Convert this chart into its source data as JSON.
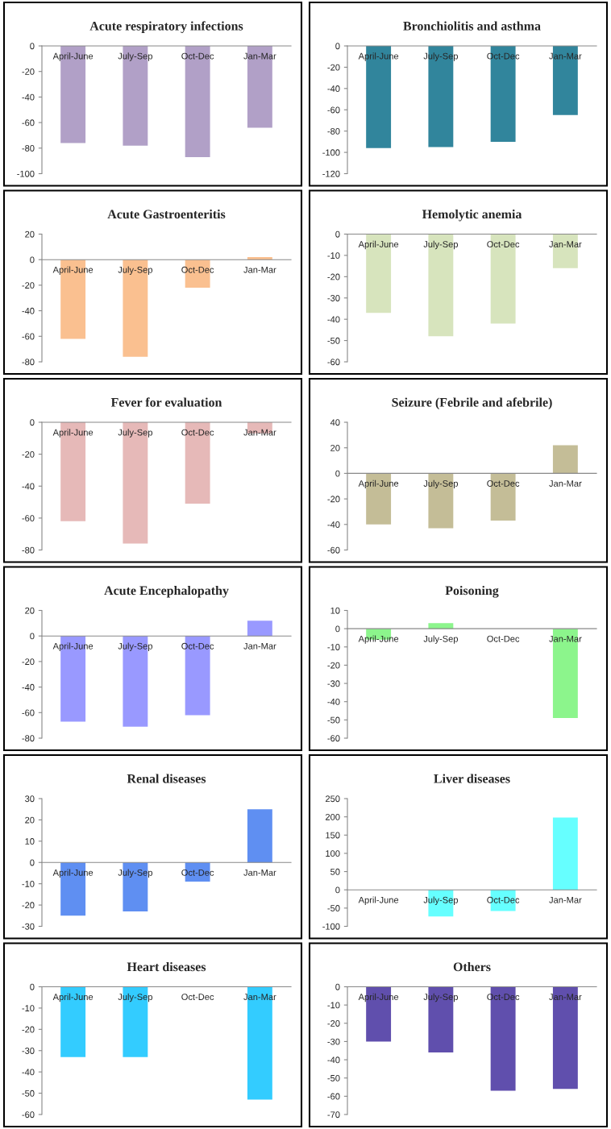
{
  "chart_data": [
    {
      "type": "bar",
      "title": "Acute respiratory infections",
      "categories": [
        "April-June",
        "July-Sep",
        "Oct-Dec",
        "Jan-Mar"
      ],
      "values": [
        -76,
        -78,
        -87,
        -64
      ],
      "color": "#b1a0c7",
      "ylim": [
        -100,
        0
      ],
      "yticks": [
        -100,
        -80,
        -60,
        -40,
        -20,
        0
      ],
      "grid": false
    },
    {
      "type": "bar",
      "title": "Bronchiolitis and asthma",
      "categories": [
        "April-June",
        "July-Sep",
        "Oct-Dec",
        "Jan-Mar"
      ],
      "values": [
        -96,
        -95,
        -90,
        -65
      ],
      "color": "#31859c",
      "ylim": [
        -120,
        0
      ],
      "yticks": [
        -120,
        -100,
        -80,
        -60,
        -40,
        -20,
        0
      ],
      "grid": false
    },
    {
      "type": "bar",
      "title": "Acute Gastroenteritis",
      "categories": [
        "April-June",
        "July-Sep",
        "Oct-Dec",
        "Jan-Mar"
      ],
      "values": [
        -62,
        -76,
        -22,
        2
      ],
      "color": "#fac090",
      "ylim": [
        -80,
        20
      ],
      "yticks": [
        -80,
        -60,
        -40,
        -20,
        0,
        20
      ],
      "grid": false
    },
    {
      "type": "bar",
      "title": "Hemolytic anemia",
      "categories": [
        "April-June",
        "July-Sep",
        "Oct-Dec",
        "Jan-Mar"
      ],
      "values": [
        -37,
        -48,
        -42,
        -16
      ],
      "color": "#d7e4bd",
      "ylim": [
        -60,
        0
      ],
      "yticks": [
        -60,
        -50,
        -40,
        -30,
        -20,
        -10,
        0
      ],
      "grid": false
    },
    {
      "type": "bar",
      "title": "Fever for evaluation",
      "categories": [
        "April-June",
        "July-Sep",
        "Oct-Dec",
        "Jan-Mar"
      ],
      "values": [
        -62,
        -76,
        -51,
        -7
      ],
      "color": "#e6b9b8",
      "ylim": [
        -80,
        0
      ],
      "yticks": [
        -80,
        -60,
        -40,
        -20,
        0
      ],
      "grid": false
    },
    {
      "type": "bar",
      "title": "Seizure (Febrile and afebrile)",
      "categories": [
        "April-June",
        "July-Sep",
        "Oct-Dec",
        "Jan-Mar"
      ],
      "values": [
        -40,
        -43,
        -37,
        22
      ],
      "color": "#c4bd97",
      "ylim": [
        -60,
        40
      ],
      "yticks": [
        -60,
        -40,
        -20,
        0,
        20,
        40
      ],
      "grid": false
    },
    {
      "type": "bar",
      "title": "Acute Encephalopathy",
      "categories": [
        "April-June",
        "July-Sep",
        "Oct-Dec",
        "Jan-Mar"
      ],
      "values": [
        -67,
        -71,
        -62,
        12
      ],
      "color": "#9999ff",
      "ylim": [
        -80,
        20
      ],
      "yticks": [
        -80,
        -60,
        -40,
        -20,
        0,
        20
      ],
      "grid": false
    },
    {
      "type": "bar",
      "title": "Poisoning",
      "categories": [
        "April-June",
        "July-Sep",
        "Oct-Dec",
        "Jan-Mar"
      ],
      "values": [
        -6,
        3,
        0,
        -49
      ],
      "color": "#8cf58c",
      "ylim": [
        -60,
        10
      ],
      "yticks": [
        -60,
        -50,
        -40,
        -30,
        -20,
        -10,
        0,
        10
      ],
      "grid": false
    },
    {
      "type": "bar",
      "title": "Renal diseases",
      "categories": [
        "April-June",
        "July-Sep",
        "Oct-Dec",
        "Jan-Mar"
      ],
      "values": [
        -25,
        -23,
        -9,
        25
      ],
      "color": "#5f8ff2",
      "ylim": [
        -30,
        30
      ],
      "yticks": [
        -30,
        -20,
        -10,
        0,
        10,
        20,
        30
      ],
      "grid": false
    },
    {
      "type": "bar",
      "title": "Liver diseases",
      "categories": [
        "April-June",
        "July-Sep",
        "Oct-Dec",
        "Jan-Mar"
      ],
      "values": [
        0,
        -73,
        -58,
        198
      ],
      "color": "#66ffff",
      "ylim": [
        -100,
        250
      ],
      "yticks": [
        -100,
        -50,
        0,
        50,
        100,
        150,
        200,
        250
      ],
      "grid": false
    },
    {
      "type": "bar",
      "title": "Heart diseases",
      "categories": [
        "April-June",
        "July-Sep",
        "Oct-Dec",
        "Jan-Mar"
      ],
      "values": [
        -33,
        -33,
        0,
        -53
      ],
      "color": "#33ccff",
      "ylim": [
        -60,
        0
      ],
      "yticks": [
        -60,
        -50,
        -40,
        -30,
        -20,
        -10,
        0
      ],
      "grid": false
    },
    {
      "type": "bar",
      "title": "Others",
      "categories": [
        "April-June",
        "July-Sep",
        "Oct-Dec",
        "Jan-Mar"
      ],
      "values": [
        -30,
        -36,
        -57,
        -56
      ],
      "color": "#604fad",
      "ylim": [
        -70,
        0
      ],
      "yticks": [
        -70,
        -60,
        -50,
        -40,
        -30,
        -20,
        -10,
        0
      ],
      "grid": false
    }
  ]
}
